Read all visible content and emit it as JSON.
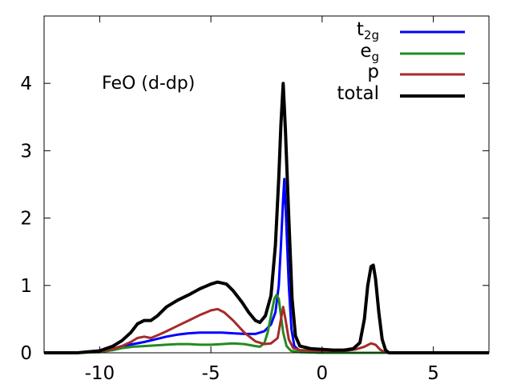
{
  "chart_data": {
    "type": "line",
    "title": "",
    "annotation": "FeO (d-dp)",
    "xlabel": "",
    "ylabel": "",
    "xlim": [
      -12.5,
      7.5
    ],
    "ylim": [
      0,
      5
    ],
    "x_ticks": [
      -10,
      -5,
      0,
      5
    ],
    "y_ticks": [
      0,
      1,
      2,
      3,
      4
    ],
    "legend_position": "top-right",
    "series": [
      {
        "name": "t",
        "name_sub": "2g",
        "color": "#0000ff",
        "points": [
          [
            -12.5,
            0
          ],
          [
            -11,
            0
          ],
          [
            -10,
            0.02
          ],
          [
            -9.4,
            0.06
          ],
          [
            -9,
            0.1
          ],
          [
            -8.5,
            0.13
          ],
          [
            -8,
            0.16
          ],
          [
            -7.5,
            0.2
          ],
          [
            -7,
            0.24
          ],
          [
            -6.5,
            0.27
          ],
          [
            -6,
            0.29
          ],
          [
            -5.5,
            0.3
          ],
          [
            -5,
            0.3
          ],
          [
            -4.5,
            0.3
          ],
          [
            -4,
            0.29
          ],
          [
            -3.5,
            0.28
          ],
          [
            -3,
            0.28
          ],
          [
            -2.6,
            0.32
          ],
          [
            -2.3,
            0.42
          ],
          [
            -2.1,
            0.6
          ],
          [
            -1.95,
            1.0
          ],
          [
            -1.85,
            1.6
          ],
          [
            -1.75,
            2.3
          ],
          [
            -1.7,
            2.58
          ],
          [
            -1.62,
            2.0
          ],
          [
            -1.5,
            1.0
          ],
          [
            -1.38,
            0.35
          ],
          [
            -1.25,
            0.1
          ],
          [
            -1,
            0.03
          ],
          [
            -0.5,
            0.01
          ],
          [
            0,
            0
          ],
          [
            1,
            0
          ],
          [
            7.5,
            0
          ]
        ]
      },
      {
        "name": "e",
        "name_sub": "g",
        "color": "#228b22",
        "points": [
          [
            -12.5,
            0
          ],
          [
            -11,
            0
          ],
          [
            -10,
            0.01
          ],
          [
            -9.4,
            0.04
          ],
          [
            -9,
            0.07
          ],
          [
            -8.5,
            0.09
          ],
          [
            -8,
            0.1
          ],
          [
            -7.5,
            0.11
          ],
          [
            -7,
            0.12
          ],
          [
            -6.5,
            0.13
          ],
          [
            -6,
            0.13
          ],
          [
            -5.5,
            0.12
          ],
          [
            -5,
            0.12
          ],
          [
            -4.5,
            0.13
          ],
          [
            -4,
            0.14
          ],
          [
            -3.5,
            0.13
          ],
          [
            -3,
            0.1
          ],
          [
            -2.8,
            0.09
          ],
          [
            -2.6,
            0.14
          ],
          [
            -2.45,
            0.3
          ],
          [
            -2.3,
            0.55
          ],
          [
            -2.15,
            0.8
          ],
          [
            -2.05,
            0.86
          ],
          [
            -1.95,
            0.8
          ],
          [
            -1.85,
            0.55
          ],
          [
            -1.75,
            0.3
          ],
          [
            -1.6,
            0.1
          ],
          [
            -1.4,
            0.03
          ],
          [
            -1,
            0.01
          ],
          [
            0,
            0
          ],
          [
            7.5,
            0
          ]
        ]
      },
      {
        "name": "p",
        "name_sub": "",
        "color": "#a52a2a",
        "points": [
          [
            -12.5,
            0
          ],
          [
            -11,
            0
          ],
          [
            -10,
            0.02
          ],
          [
            -9.4,
            0.06
          ],
          [
            -9,
            0.1
          ],
          [
            -8.6,
            0.16
          ],
          [
            -8.3,
            0.22
          ],
          [
            -8,
            0.24
          ],
          [
            -7.7,
            0.22
          ],
          [
            -7.4,
            0.26
          ],
          [
            -7,
            0.32
          ],
          [
            -6.5,
            0.4
          ],
          [
            -6,
            0.48
          ],
          [
            -5.5,
            0.56
          ],
          [
            -5,
            0.63
          ],
          [
            -4.7,
            0.65
          ],
          [
            -4.4,
            0.6
          ],
          [
            -4,
            0.48
          ],
          [
            -3.5,
            0.3
          ],
          [
            -3,
            0.17
          ],
          [
            -2.6,
            0.13
          ],
          [
            -2.3,
            0.14
          ],
          [
            -2.0,
            0.22
          ],
          [
            -1.85,
            0.5
          ],
          [
            -1.75,
            0.68
          ],
          [
            -1.65,
            0.5
          ],
          [
            -1.5,
            0.2
          ],
          [
            -1.3,
            0.07
          ],
          [
            -1,
            0.04
          ],
          [
            0,
            0.03
          ],
          [
            1,
            0.03
          ],
          [
            1.5,
            0.05
          ],
          [
            1.9,
            0.09
          ],
          [
            2.2,
            0.14
          ],
          [
            2.4,
            0.12
          ],
          [
            2.6,
            0.05
          ],
          [
            2.8,
            0.01
          ],
          [
            3,
            0
          ],
          [
            7.5,
            0
          ]
        ]
      },
      {
        "name": "total",
        "name_sub": "",
        "color": "#000000",
        "points": [
          [
            -12.5,
            0
          ],
          [
            -11,
            0
          ],
          [
            -10,
            0.03
          ],
          [
            -9.4,
            0.1
          ],
          [
            -9,
            0.18
          ],
          [
            -8.6,
            0.3
          ],
          [
            -8.3,
            0.43
          ],
          [
            -8,
            0.48
          ],
          [
            -7.7,
            0.48
          ],
          [
            -7.4,
            0.55
          ],
          [
            -7,
            0.68
          ],
          [
            -6.5,
            0.78
          ],
          [
            -6,
            0.86
          ],
          [
            -5.5,
            0.95
          ],
          [
            -5,
            1.02
          ],
          [
            -4.7,
            1.05
          ],
          [
            -4.3,
            1.02
          ],
          [
            -4,
            0.92
          ],
          [
            -3.6,
            0.75
          ],
          [
            -3.3,
            0.6
          ],
          [
            -3,
            0.48
          ],
          [
            -2.8,
            0.45
          ],
          [
            -2.55,
            0.55
          ],
          [
            -2.3,
            0.85
          ],
          [
            -2.1,
            1.6
          ],
          [
            -1.95,
            2.6
          ],
          [
            -1.85,
            3.4
          ],
          [
            -1.75,
            4.0
          ],
          [
            -1.65,
            3.3
          ],
          [
            -1.5,
            2.0
          ],
          [
            -1.35,
            0.8
          ],
          [
            -1.2,
            0.25
          ],
          [
            -1,
            0.1
          ],
          [
            -0.5,
            0.06
          ],
          [
            0,
            0.05
          ],
          [
            0.5,
            0.04
          ],
          [
            1,
            0.04
          ],
          [
            1.4,
            0.06
          ],
          [
            1.7,
            0.15
          ],
          [
            1.9,
            0.5
          ],
          [
            2.05,
            1.0
          ],
          [
            2.2,
            1.28
          ],
          [
            2.3,
            1.3
          ],
          [
            2.4,
            1.1
          ],
          [
            2.55,
            0.6
          ],
          [
            2.7,
            0.2
          ],
          [
            2.85,
            0.04
          ],
          [
            3,
            0
          ],
          [
            7.5,
            0
          ]
        ]
      }
    ]
  }
}
